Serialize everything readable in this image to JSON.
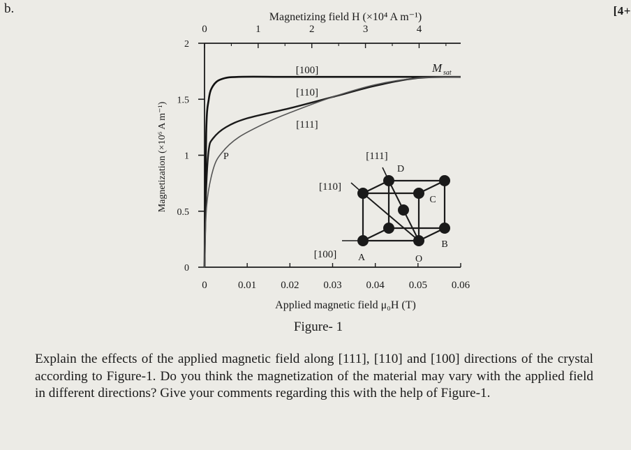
{
  "question_label": "b.",
  "marks": "[4+",
  "figure": {
    "top_axis_title": "Magnetizing field H (×10⁴ A m⁻¹)",
    "top_ticks": [
      "0",
      "1",
      "2",
      "3",
      "4"
    ],
    "bottom_axis_title": "Applied magnetic field μ₀H (T)",
    "bottom_ticks": [
      "0",
      "0.01",
      "0.02",
      "0.03",
      "0.04",
      "0.05",
      "0.06"
    ],
    "left_axis_title": "Magnetization (×10⁶ A m⁻¹)",
    "left_ticks": [
      "0",
      "0.5",
      "1",
      "1.5",
      "2"
    ],
    "curve_labels": [
      "[100]",
      "[110]",
      "[111]"
    ],
    "saturation_label": "M",
    "saturation_subscript": "sat",
    "point_label": "P",
    "inset": {
      "dir_111": "[111]",
      "dir_110": "[110]",
      "dir_100": "[100]",
      "corner_D": "D",
      "corner_C": "C",
      "corner_B": "B",
      "corner_A": "A",
      "corner_O": "O"
    },
    "caption": "Figure- 1"
  },
  "chart_data": {
    "type": "line",
    "title": "",
    "xlabel": "Applied magnetic field μ₀H (T)",
    "x2label": "Magnetizing field H (×10⁴ A m⁻¹)",
    "ylabel": "Magnetization (×10⁶ A m⁻¹)",
    "xlim": [
      0,
      0.06
    ],
    "ylim": [
      0,
      2
    ],
    "x_ticks": [
      0,
      0.01,
      0.02,
      0.03,
      0.04,
      0.05,
      0.06
    ],
    "x2_ticks": [
      0,
      1,
      2,
      3,
      4
    ],
    "y_ticks": [
      0,
      0.5,
      1,
      1.5,
      2
    ],
    "grid": false,
    "series": [
      {
        "name": "[100]",
        "x": [
          0,
          0.0004,
          0.001,
          0.002,
          0.004,
          0.008,
          0.02,
          0.04,
          0.06
        ],
        "y": [
          0,
          1.2,
          1.5,
          1.62,
          1.68,
          1.7,
          1.7,
          1.7,
          1.7
        ]
      },
      {
        "name": "[110]",
        "x": [
          0,
          0.0004,
          0.001,
          0.002,
          0.005,
          0.01,
          0.02,
          0.03,
          0.04,
          0.05,
          0.06
        ],
        "y": [
          0,
          0.7,
          1.05,
          1.15,
          1.25,
          1.33,
          1.42,
          1.52,
          1.62,
          1.69,
          1.7
        ]
      },
      {
        "name": "[111]",
        "x": [
          0,
          0.0005,
          0.002,
          0.004,
          0.008,
          0.015,
          0.02,
          0.03,
          0.04,
          0.05,
          0.06
        ],
        "y": [
          0,
          0.55,
          0.87,
          1.02,
          1.16,
          1.3,
          1.38,
          1.52,
          1.63,
          1.69,
          1.7
        ]
      }
    ]
  },
  "question_text": "Explain the effects of the applied magnetic field along [111], [110] and [100] directions of the crystal according to Figure-1. Do you think the magnetization of the material may vary with the applied field in different directions? Give your comments regarding this with the help of Figure-1."
}
